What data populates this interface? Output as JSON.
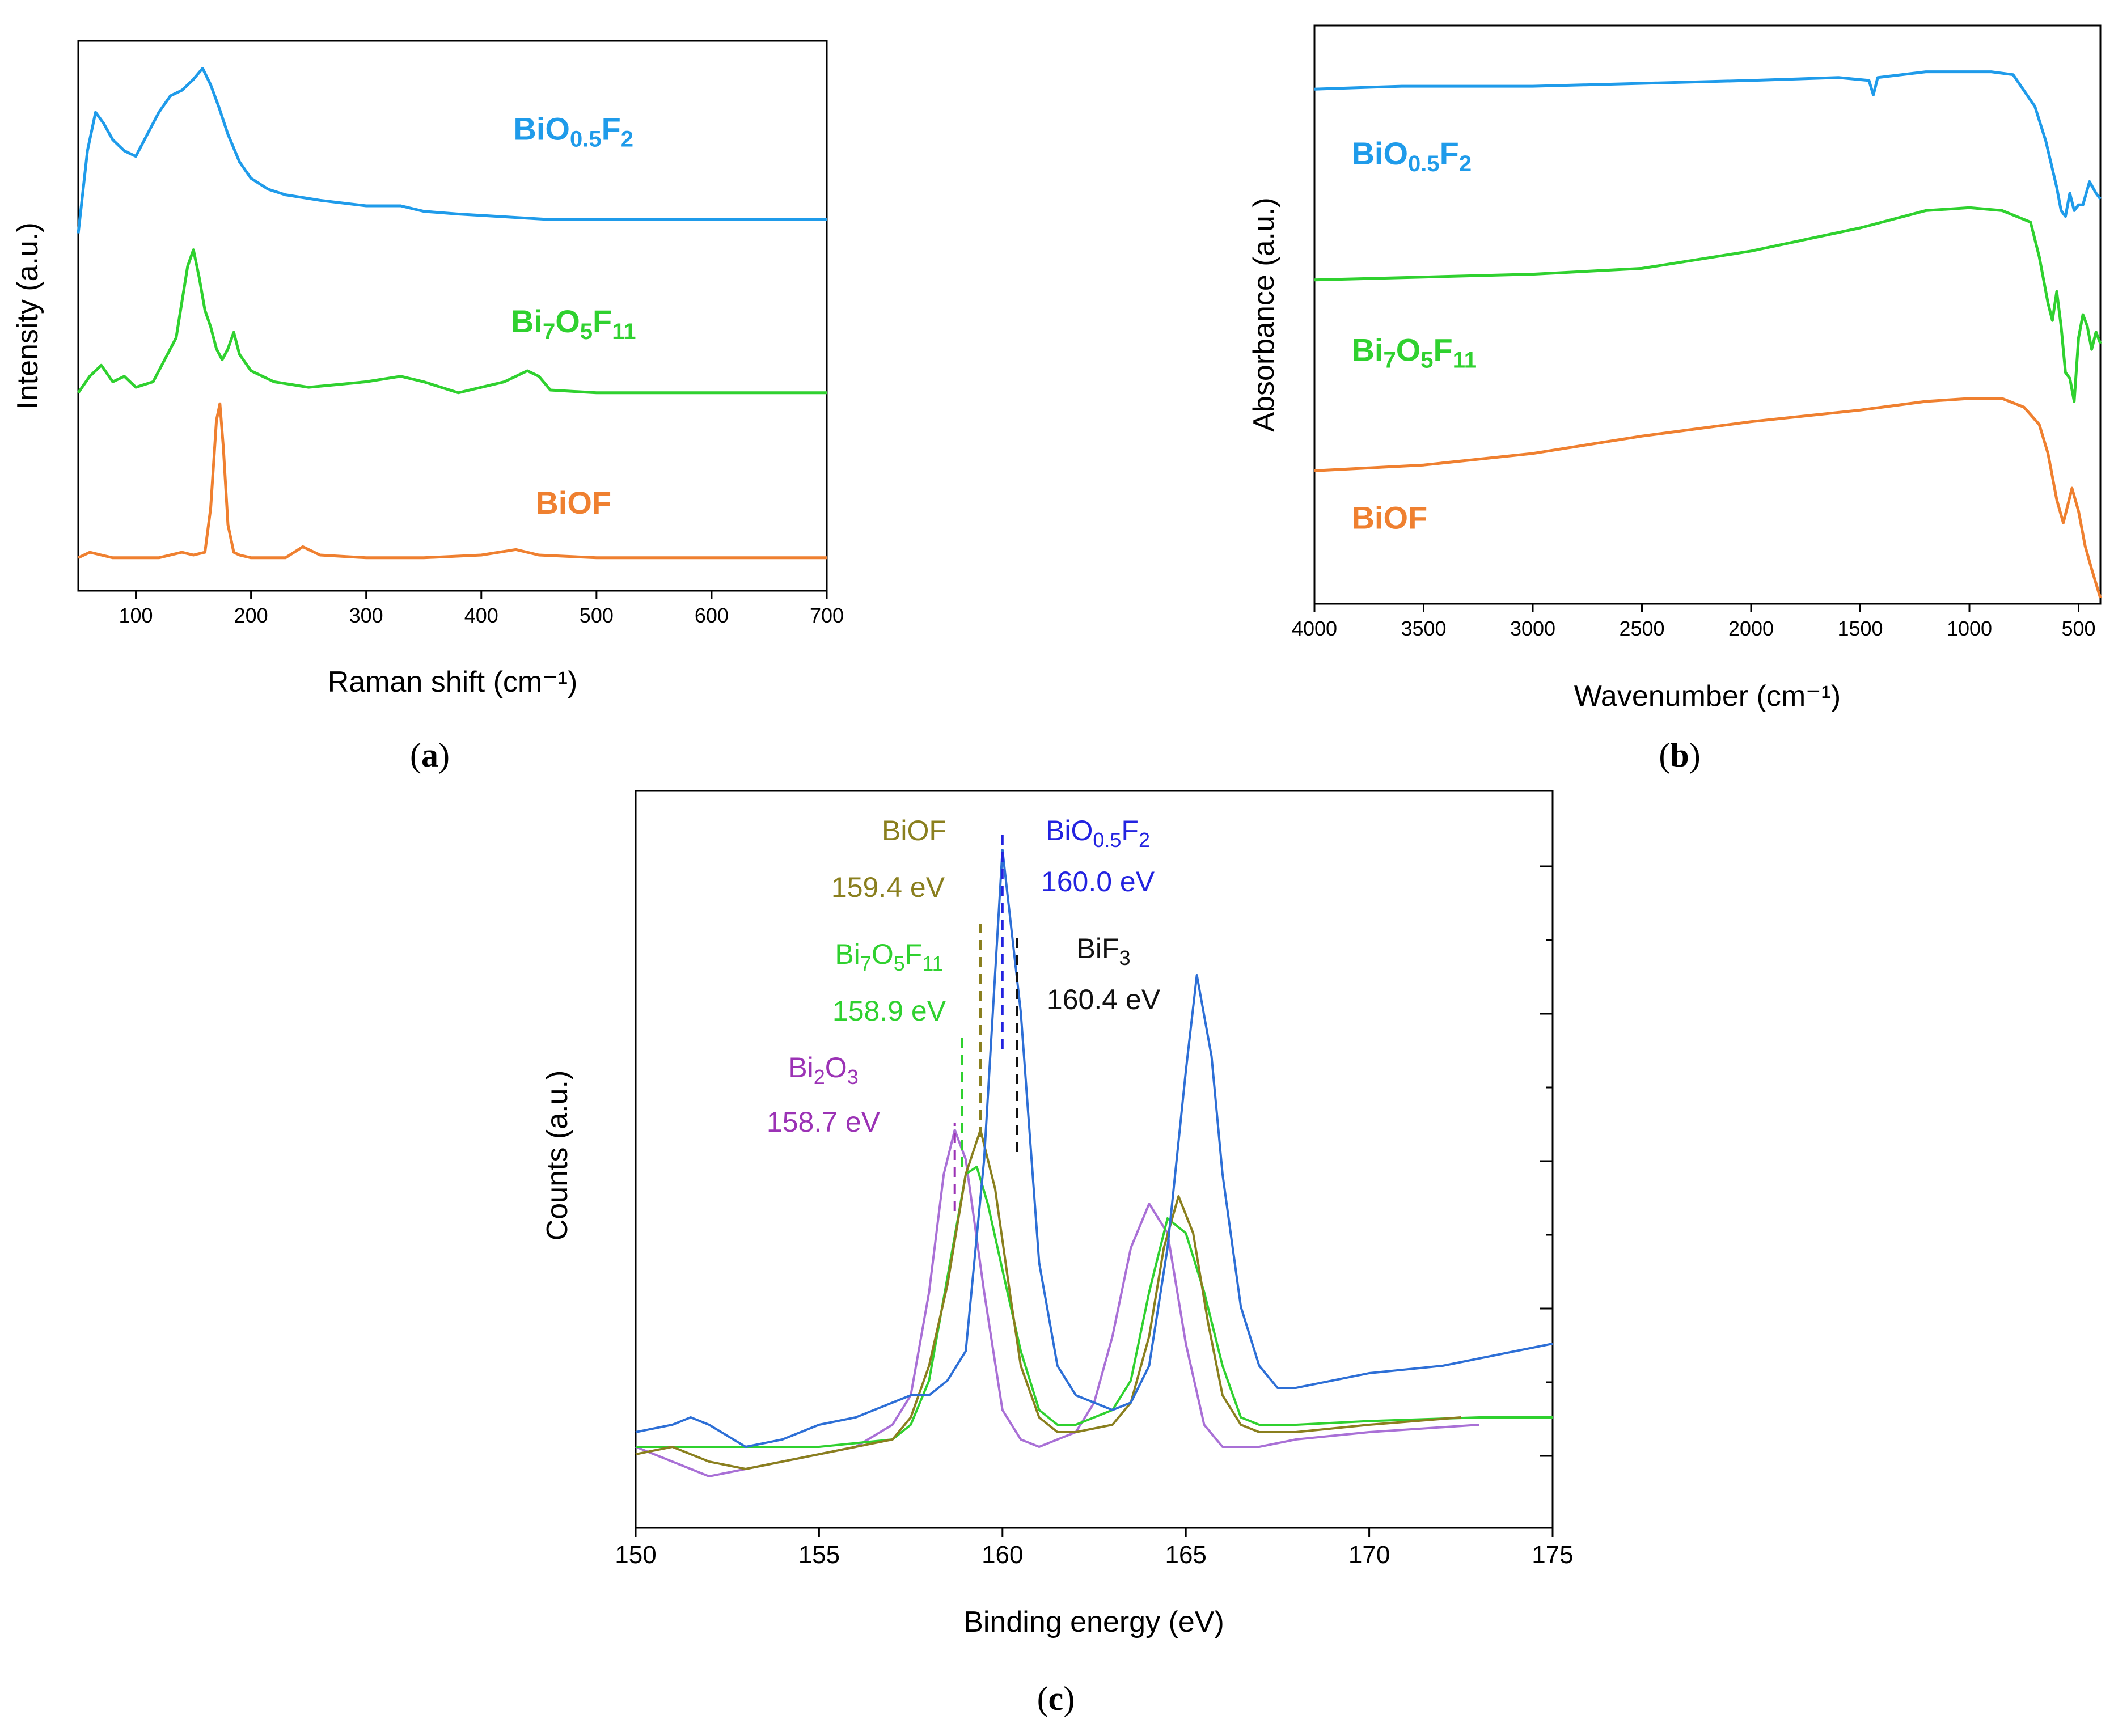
{
  "panels": {
    "a": {
      "caption": "a",
      "chart_data": {
        "type": "line",
        "xlabel": "Raman shift (cm⁻¹)",
        "ylabel": "Intensity (a.u.)",
        "xlim": [
          50,
          700
        ],
        "ylim": [
          0,
          100
        ],
        "xticks": [
          100,
          200,
          300,
          400,
          500,
          600,
          700
        ],
        "yticks": [],
        "series": [
          {
            "name": "BiO0.5F2",
            "label_parts": [
              [
                "BiO",
                ""
              ],
              [
                "0.5",
                "sub"
              ],
              [
                "F",
                ""
              ],
              [
                "2",
                "sub"
              ]
            ],
            "color": "#1f9bea",
            "label_x": 480,
            "label_y": 82,
            "x": [
              50,
              58,
              65,
              72,
              80,
              90,
              100,
              110,
              120,
              130,
              140,
              150,
              158,
              165,
              172,
              180,
              190,
              200,
              215,
              230,
              260,
              300,
              330,
              350,
              380,
              420,
              460,
              500,
              550,
              600,
              650,
              700
            ],
            "y": [
              65,
              80,
              87,
              85,
              82,
              80,
              79,
              83,
              87,
              90,
              91,
              93,
              95,
              92,
              88,
              83,
              78,
              75,
              73,
              72,
              71,
              70,
              70,
              69,
              68.5,
              68,
              67.5,
              67.5,
              67.5,
              67.5,
              67.5,
              67.5
            ]
          },
          {
            "name": "Bi7O5F11",
            "label_parts": [
              [
                "Bi",
                ""
              ],
              [
                "7",
                "sub"
              ],
              [
                "O",
                ""
              ],
              [
                "5",
                "sub"
              ],
              [
                "F",
                ""
              ],
              [
                "11",
                "sub"
              ]
            ],
            "color": "#2fd12f",
            "label_x": 480,
            "label_y": 47,
            "x": [
              50,
              60,
              70,
              80,
              90,
              100,
              115,
              125,
              135,
              145,
              150,
              155,
              160,
              165,
              170,
              175,
              180,
              185,
              190,
              200,
              220,
              250,
              300,
              330,
              350,
              380,
              420,
              440,
              450,
              460,
              500,
              550,
              600,
              650,
              700
            ],
            "y": [
              36,
              39,
              41,
              38,
              39,
              37,
              38,
              42,
              46,
              59,
              62,
              57,
              51,
              48,
              44,
              42,
              44,
              47,
              43,
              40,
              38,
              37,
              38,
              39,
              38,
              36,
              38,
              40,
              39,
              36.5,
              36,
              36,
              36,
              36,
              36
            ]
          },
          {
            "name": "BiOF",
            "label_parts": [
              [
                "BiOF",
                ""
              ]
            ],
            "color": "#ef8030",
            "label_x": 480,
            "label_y": 14,
            "x": [
              50,
              60,
              70,
              80,
              100,
              120,
              140,
              150,
              160,
              165,
              170,
              173,
              176,
              180,
              185,
              190,
              200,
              230,
              245,
              260,
              300,
              350,
              400,
              430,
              450,
              500,
              600,
              700
            ],
            "y": [
              6,
              7,
              6.5,
              6,
              6,
              6,
              7,
              6.5,
              7,
              15,
              31,
              34,
              26,
              12,
              7,
              6.5,
              6,
              6,
              8,
              6.5,
              6,
              6,
              6.5,
              7.5,
              6.5,
              6,
              6,
              6
            ]
          }
        ]
      }
    },
    "b": {
      "caption": "b",
      "chart_data": {
        "type": "line",
        "xlabel": "Wavenumber (cm⁻¹)",
        "ylabel": "Absorbance (a.u.)",
        "xlim": [
          4000,
          400
        ],
        "ylim": [
          0,
          100
        ],
        "xticks": [
          4000,
          3500,
          3000,
          2500,
          2000,
          1500,
          1000,
          500
        ],
        "yticks": [],
        "series": [
          {
            "name": "BiO0.5F2",
            "label_parts": [
              [
                "BiO",
                ""
              ],
              [
                "0.5",
                "sub"
              ],
              [
                "F",
                ""
              ],
              [
                "2",
                "sub"
              ]
            ],
            "color": "#1f9bea",
            "label_x": 3830,
            "label_y": 76,
            "x": [
              4000,
              3600,
              3300,
              3000,
              2500,
              2000,
              1600,
              1460,
              1440,
              1420,
              1200,
              900,
              800,
              700,
              650,
              600,
              580,
              560,
              540,
              520,
              500,
              480,
              450,
              420,
              400
            ],
            "y": [
              89,
              89.5,
              89.5,
              89.5,
              90,
              90.5,
              91,
              90.5,
              88,
              91,
              92,
              92,
              91.5,
              86,
              80,
              72,
              68,
              67,
              71,
              68,
              69,
              69,
              73,
              71,
              70
            ]
          },
          {
            "name": "Bi7O5F11",
            "label_parts": [
              [
                "Bi",
                ""
              ],
              [
                "7",
                "sub"
              ],
              [
                "O",
                ""
              ],
              [
                "5",
                "sub"
              ],
              [
                "F",
                ""
              ],
              [
                "11",
                "sub"
              ]
            ],
            "color": "#2fd12f",
            "label_x": 3830,
            "label_y": 42,
            "x": [
              4000,
              3500,
              3000,
              2500,
              2000,
              1500,
              1200,
              1000,
              850,
              720,
              680,
              640,
              620,
              600,
              580,
              560,
              540,
              520,
              500,
              480,
              460,
              440,
              420,
              400
            ],
            "y": [
              56,
              56.5,
              57,
              58,
              61,
              65,
              68,
              68.5,
              68,
              66,
              60,
              52,
              49,
              54,
              48,
              40,
              39,
              35,
              46,
              50,
              48,
              44,
              47,
              45
            ]
          },
          {
            "name": "BiOF",
            "label_parts": [
              [
                "BiOF",
                ""
              ]
            ],
            "color": "#ef8030",
            "label_x": 3830,
            "label_y": 13,
            "x": [
              4000,
              3500,
              3000,
              2500,
              2300,
              2000,
              1500,
              1200,
              1000,
              850,
              750,
              680,
              640,
              600,
              570,
              550,
              530,
              500,
              470,
              440,
              400
            ],
            "y": [
              23,
              24,
              26,
              29,
              30,
              31.5,
              33.5,
              35,
              35.5,
              35.5,
              34,
              31,
              26,
              18,
              14,
              17,
              20,
              16,
              10,
              6,
              1
            ]
          }
        ]
      }
    },
    "c": {
      "caption": "c",
      "chart_data": {
        "type": "line",
        "xlabel": "Binding energy (eV)",
        "ylabel": "Counts (a.u.)",
        "xlim": [
          150,
          175
        ],
        "ylim": [
          0,
          100
        ],
        "xticks": [
          150,
          155,
          160,
          165,
          170,
          175
        ],
        "yticks": [],
        "series": [
          {
            "name": "Bi2O3",
            "color": "#a970d6",
            "x": [
              150,
              151,
              152,
              153,
              154,
              155,
              156,
              157,
              157.5,
              158,
              158.4,
              158.7,
              159,
              159.5,
              160,
              160.5,
              161,
              162,
              162.5,
              163,
              163.5,
              164,
              164.5,
              165,
              165.5,
              166,
              167,
              168,
              170,
              173
            ],
            "y": [
              11,
              9,
              7,
              8,
              9,
              10,
              11,
              14,
              18,
              32,
              48,
              54,
              50,
              32,
              16,
              12,
              11,
              13,
              17,
              26,
              38,
              44,
              40,
              25,
              14,
              11,
              11,
              12,
              13,
              14
            ]
          },
          {
            "name": "Bi7O5F11",
            "color": "#2fd12f",
            "x": [
              150,
              152,
              154,
              155,
              156,
              157,
              157.5,
              158,
              158.5,
              159,
              159.3,
              159.6,
              160,
              160.5,
              161,
              161.5,
              162,
              163,
              163.5,
              164,
              164.5,
              165,
              165.5,
              166,
              166.5,
              167,
              168,
              170,
              173,
              175
            ],
            "y": [
              11,
              11,
              11,
              11,
              11.5,
              12,
              14,
              20,
              34,
              48,
              49,
              44,
              35,
              24,
              16,
              14,
              14,
              16,
              20,
              32,
              42,
              40,
              32,
              22,
              15,
              14,
              14,
              14.5,
              15,
              15
            ]
          },
          {
            "name": "BiOF",
            "color": "#8a7f1e",
            "x": [
              150,
              151,
              152,
              153,
              154,
              155,
              156,
              157,
              157.5,
              158,
              158.5,
              159,
              159.4,
              159.8,
              160.2,
              160.5,
              161,
              161.5,
              162,
              163,
              163.5,
              164,
              164.4,
              164.8,
              165.2,
              165.6,
              166,
              166.5,
              167,
              168,
              170,
              172.5
            ],
            "y": [
              10,
              11,
              9,
              8,
              9,
              10,
              11,
              12,
              15,
              22,
              33,
              48,
              54,
              46,
              32,
              22,
              15,
              13,
              13,
              14,
              17,
              26,
              38,
              45,
              40,
              28,
              18,
              14,
              13,
              13,
              14,
              15
            ]
          },
          {
            "name": "BiO0.5F2",
            "color": "#2d6fd6",
            "x": [
              150,
              151,
              151.5,
              152,
              153,
              154,
              155,
              156,
              157,
              157.5,
              158,
              158.5,
              159,
              159.5,
              160,
              160.5,
              161,
              161.5,
              162,
              163,
              163.5,
              164,
              164.5,
              165,
              165.3,
              165.7,
              166,
              166.5,
              167,
              167.5,
              168,
              170,
              172,
              174,
              175
            ],
            "y": [
              13,
              14,
              15,
              14,
              11,
              12,
              14,
              15,
              17,
              18,
              18,
              20,
              24,
              50,
              92,
              70,
              36,
              22,
              18,
              16,
              17,
              22,
              38,
              62,
              75,
              64,
              48,
              30,
              22,
              19,
              19,
              21,
              22,
              24,
              25
            ]
          }
        ],
        "markers": [
          {
            "x": 158.7,
            "y0": 43,
            "y1": 55,
            "color": "#9b32b5"
          },
          {
            "x": 158.9,
            "y0": 49,
            "y1": 67,
            "color": "#2fd12f"
          },
          {
            "x": 159.4,
            "y0": 53,
            "y1": 82,
            "color": "#8a7f1e"
          },
          {
            "x": 160.0,
            "y0": 65,
            "y1": 94,
            "color": "#2323e0"
          },
          {
            "x": 160.4,
            "y0": 51,
            "y1": 81,
            "color": "#111111"
          }
        ],
        "annotations": {
          "biof": {
            "label": "BiOF",
            "value": "159.4 eV",
            "color": "#8a7f1e"
          },
          "bio05f2": {
            "label_parts": [
              [
                "BiO",
                ""
              ],
              [
                "0.5",
                "sub"
              ],
              [
                "F",
                ""
              ],
              [
                "2",
                "sub"
              ]
            ],
            "value": "160.0 eV",
            "color": "#2323e0"
          },
          "bif3": {
            "label_parts": [
              [
                "BiF",
                ""
              ],
              [
                "3",
                "sub"
              ]
            ],
            "value": "160.4 eV",
            "color": "#111111"
          },
          "bi7o5f11": {
            "label_parts": [
              [
                "Bi",
                ""
              ],
              [
                "7",
                "sub"
              ],
              [
                "O",
                ""
              ],
              [
                "5",
                "sub"
              ],
              [
                "F",
                ""
              ],
              [
                "11",
                "sub"
              ]
            ],
            "value": "158.9 eV",
            "color": "#2fd12f"
          },
          "bi2o3": {
            "label_parts": [
              [
                "Bi",
                ""
              ],
              [
                "2",
                "sub"
              ],
              [
                "O",
                ""
              ],
              [
                "3",
                "sub"
              ]
            ],
            "value": "158.7 eV",
            "color": "#9b32b5"
          }
        }
      }
    }
  }
}
